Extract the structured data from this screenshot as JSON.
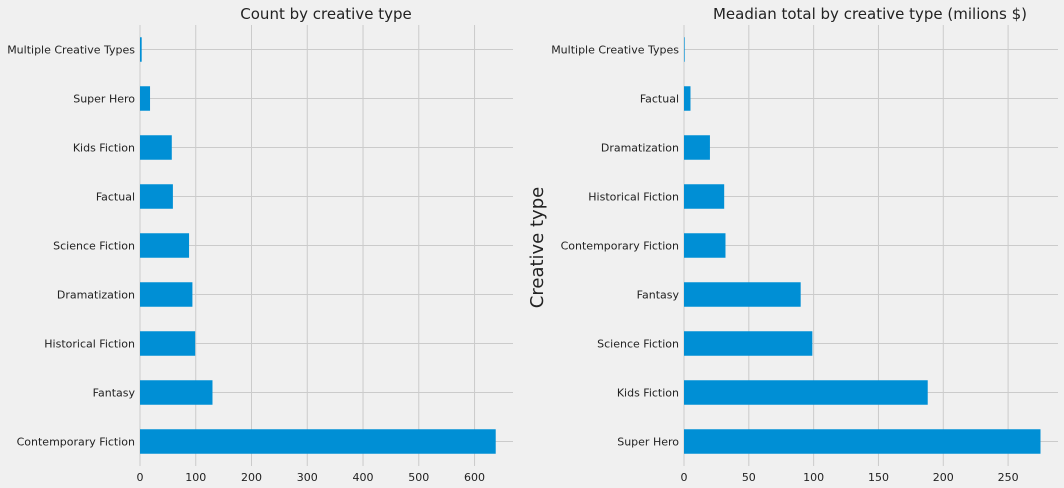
{
  "colors": {
    "background": "#f0f0f0",
    "bar": "#008fd5",
    "grid": "#cbcbcb",
    "text": "#222222"
  },
  "chart_data": [
    {
      "type": "bar",
      "orientation": "horizontal",
      "title": "Count by creative type",
      "ylabel": "",
      "categories": [
        "Contemporary Fiction",
        "Fantasy",
        "Historical Fiction",
        "Dramatization",
        "Science Fiction",
        "Factual",
        "Kids Fiction",
        "Super Hero",
        "Multiple Creative Types"
      ],
      "values": [
        638,
        130,
        99,
        94,
        88,
        59,
        57,
        18,
        3
      ],
      "xticks": [
        0,
        100,
        200,
        300,
        400,
        500,
        600
      ],
      "xlim": [
        0,
        669
      ],
      "grid": true
    },
    {
      "type": "bar",
      "orientation": "horizontal",
      "title": "Meadian total by creative type  (milions $)",
      "ylabel": "Creative type",
      "categories": [
        "Super Hero",
        "Kids Fiction",
        "Science Fiction",
        "Fantasy",
        "Contemporary Fiction",
        "Historical Fiction",
        "Dramatization",
        "Factual",
        "Multiple Creative Types"
      ],
      "values": [
        275,
        188,
        99,
        90,
        32,
        31,
        20,
        5,
        0.5
      ],
      "xticks": [
        0,
        50,
        100,
        150,
        200,
        250
      ],
      "xlim": [
        0,
        288.5
      ],
      "grid": true
    }
  ]
}
